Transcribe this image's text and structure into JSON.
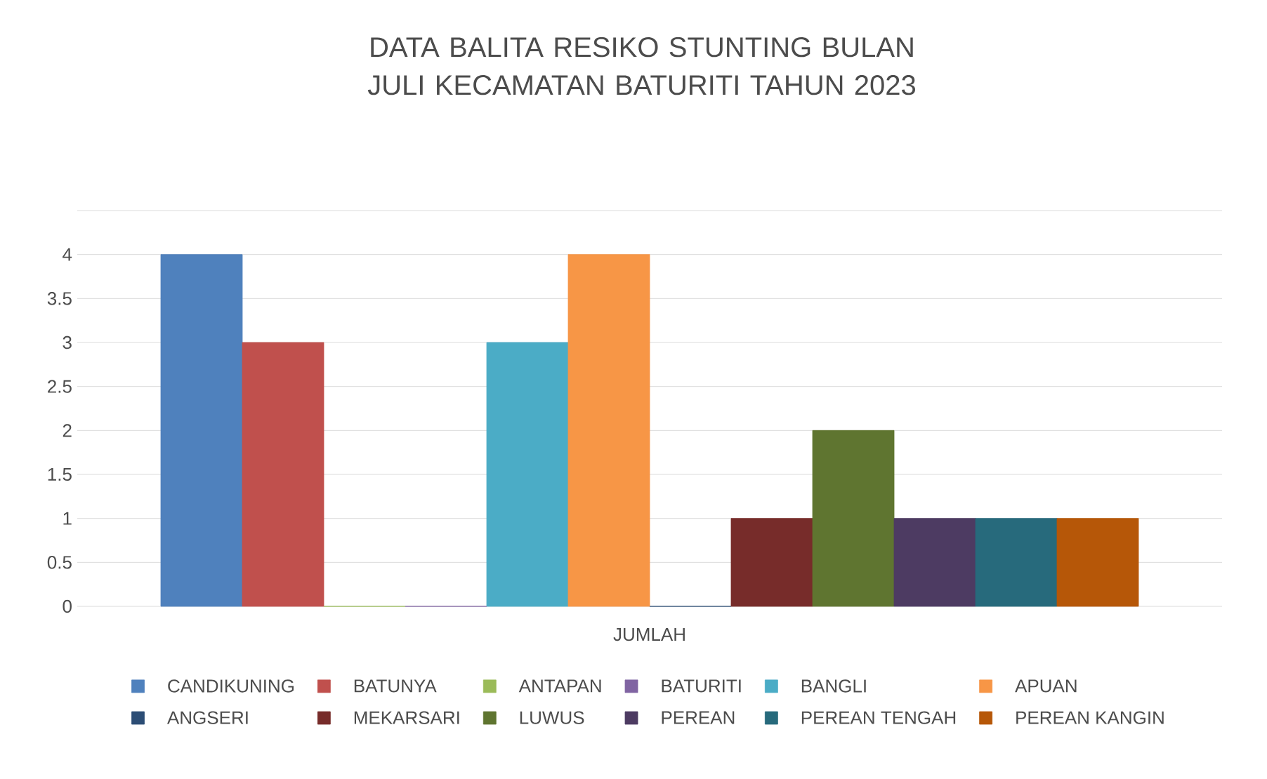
{
  "chart_data": {
    "type": "bar",
    "title": "DATA BALITA RESIKO STUNTING BULAN JULI KECAMATAN BATURITI TAHUN 2023",
    "categories": [
      "JUMLAH"
    ],
    "series": [
      {
        "name": "CANDIKUNING",
        "color": "#4f81bd",
        "values": [
          4
        ]
      },
      {
        "name": "BATUNYA",
        "color": "#c0504d",
        "values": [
          3
        ]
      },
      {
        "name": "ANTAPAN",
        "color": "#9bbb59",
        "values": [
          0
        ]
      },
      {
        "name": "BATURITI",
        "color": "#8064a2",
        "values": [
          0
        ]
      },
      {
        "name": "BANGLI",
        "color": "#4bacc6",
        "values": [
          3
        ]
      },
      {
        "name": "APUAN",
        "color": "#f79646",
        "values": [
          4
        ]
      },
      {
        "name": "ANGSERI",
        "color": "#2c4d75",
        "values": [
          0
        ]
      },
      {
        "name": "MEKARSARI",
        "color": "#772c2a",
        "values": [
          1
        ]
      },
      {
        "name": "LUWUS",
        "color": "#5f7530",
        "values": [
          2
        ]
      },
      {
        "name": "PEREAN",
        "color": "#4d3b62",
        "values": [
          1
        ]
      },
      {
        "name": "PEREAN TENGAH",
        "color": "#276a7c",
        "values": [
          1
        ]
      },
      {
        "name": "PEREAN KANGIN",
        "color": "#b65708",
        "values": [
          1
        ]
      }
    ],
    "ylim": [
      0,
      4.5
    ],
    "yticks": [
      0,
      0.5,
      1,
      1.5,
      2,
      2.5,
      3,
      3.5,
      4
    ],
    "grid": "y",
    "legend": "bottom"
  }
}
